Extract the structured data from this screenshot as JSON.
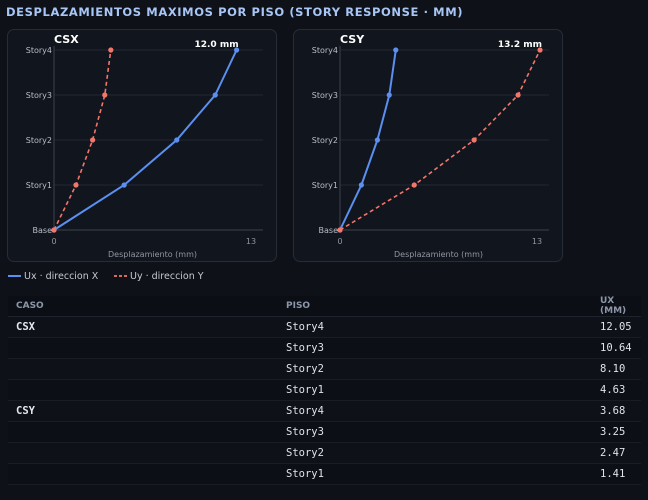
{
  "title": "DESPLAZAMIENTOS MAXIMOS POR PISO (STORY RESPONSE · MM)",
  "legend": [
    {
      "label": "Ux · direccion X",
      "color": "#5b8ff0",
      "style": "solid"
    },
    {
      "label": "Uy · direccion Y",
      "color": "#f2766a",
      "style": "dashed"
    }
  ],
  "chart_data": [
    {
      "type": "line",
      "title": "CSX",
      "xlabel": "Desplazamiento (mm)",
      "xlim": [
        0,
        13
      ],
      "x_ticks": [
        "0",
        "13"
      ],
      "categories": [
        "Base",
        "Story1",
        "Story2",
        "Story3",
        "Story4"
      ],
      "max_label": "12.0 mm",
      "series": [
        {
          "name": "Ux · direccion X",
          "color": "#5b8ff0",
          "style": "solid",
          "values": [
            0,
            4.63,
            8.1,
            10.64,
            12.05
          ]
        },
        {
          "name": "Uy · direccion Y",
          "color": "#f2766a",
          "style": "dashed",
          "values": [
            0,
            1.45,
            2.55,
            3.35,
            3.75
          ]
        }
      ],
      "grid": true
    },
    {
      "type": "line",
      "title": "CSY",
      "xlabel": "Desplazamiento (mm)",
      "xlim": [
        0,
        13
      ],
      "x_ticks": [
        "0",
        "13"
      ],
      "categories": [
        "Base",
        "Story1",
        "Story2",
        "Story3",
        "Story4"
      ],
      "max_label": "13.2 mm",
      "series": [
        {
          "name": "Ux · direccion X",
          "color": "#5b8ff0",
          "style": "solid",
          "values": [
            0,
            1.41,
            2.47,
            3.25,
            3.68
          ]
        },
        {
          "name": "Uy · direccion Y",
          "color": "#f2766a",
          "style": "dashed",
          "values": [
            0,
            4.9,
            8.85,
            11.75,
            13.2
          ]
        }
      ],
      "grid": true
    }
  ],
  "table": {
    "headers": [
      "CASO",
      "PISO",
      "UX (MM)"
    ],
    "rows": [
      [
        "CSX",
        "Story4",
        "12.05"
      ],
      [
        "",
        "Story3",
        "10.64"
      ],
      [
        "",
        "Story2",
        "8.10"
      ],
      [
        "",
        "Story1",
        "4.63"
      ],
      [
        "CSY",
        "Story4",
        "3.68"
      ],
      [
        "",
        "Story3",
        "3.25"
      ],
      [
        "",
        "Story2",
        "2.47"
      ],
      [
        "",
        "Story1",
        "1.41"
      ]
    ]
  }
}
